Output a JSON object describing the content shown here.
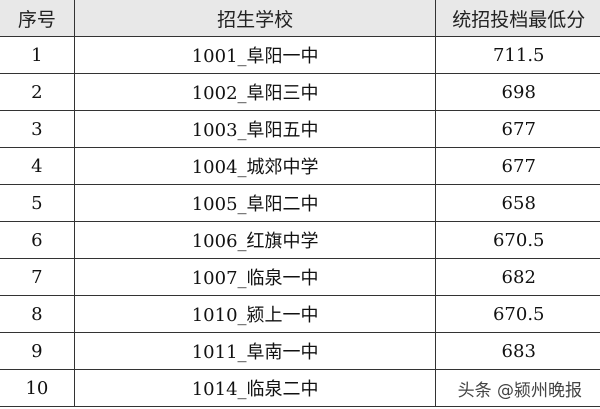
{
  "headers": [
    "序号",
    "招生学校",
    "统招投档最低分"
  ],
  "rows": [
    {
      "no": "1",
      "school": "1001_阜阳一中",
      "score": "711.5"
    },
    {
      "no": "2",
      "school": "1002_阜阳三中",
      "score": "698"
    },
    {
      "no": "3",
      "school": "1003_阜阳五中",
      "score": "677"
    },
    {
      "no": "4",
      "school": "1004_城郊中学",
      "score": "677"
    },
    {
      "no": "5",
      "school": "1005_阜阳二中",
      "score": "658"
    },
    {
      "no": "6",
      "school": "1006_红旗中学",
      "score": "670.5"
    },
    {
      "no": "7",
      "school": "1007_临泉一中",
      "score": "682"
    },
    {
      "no": "8",
      "school": "1010_颍上一中",
      "score": "670.5"
    },
    {
      "no": "9",
      "school": "1011_阜南一中",
      "score": "683"
    },
    {
      "no": "10",
      "school": "1014_临泉二中",
      "score": ""
    }
  ],
  "watermark": "头条 @颍州晚报"
}
